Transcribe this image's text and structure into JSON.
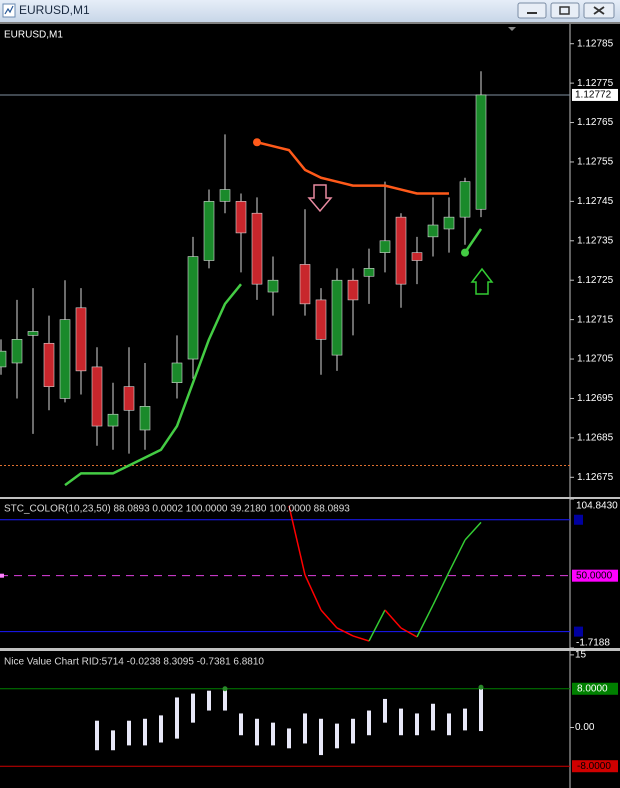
{
  "window": {
    "title": "EURUSD,M1"
  },
  "main": {
    "label": "EURUSD,M1",
    "ylim": [
      1.1267,
      1.1279
    ],
    "yticks": [
      1.12785,
      1.12775,
      1.12765,
      1.12755,
      1.12745,
      1.12735,
      1.12725,
      1.12715,
      1.12705,
      1.12695,
      1.12685,
      1.12675
    ],
    "current_price": 1.12772,
    "level": 1.12678,
    "up_color": "#1a8a2a",
    "down_color": "#c8262c",
    "wick_color": "#d8d8d8",
    "candles": [
      {
        "open": 1.12703,
        "high": 1.1271,
        "low": 1.12701,
        "close": 1.12707
      },
      {
        "open": 1.12704,
        "high": 1.1272,
        "low": 1.12695,
        "close": 1.1271
      },
      {
        "open": 1.12711,
        "high": 1.12723,
        "low": 1.12686,
        "close": 1.12712
      },
      {
        "open": 1.12709,
        "high": 1.12716,
        "low": 1.12692,
        "close": 1.12698
      },
      {
        "open": 1.12695,
        "high": 1.12725,
        "low": 1.12694,
        "close": 1.12715
      },
      {
        "open": 1.12718,
        "high": 1.12723,
        "low": 1.12696,
        "close": 1.12702
      },
      {
        "open": 1.12703,
        "high": 1.12708,
        "low": 1.12683,
        "close": 1.12688
      },
      {
        "open": 1.12688,
        "high": 1.12699,
        "low": 1.12682,
        "close": 1.12691
      },
      {
        "open": 1.12698,
        "high": 1.12708,
        "low": 1.12681,
        "close": 1.12692
      },
      {
        "open": 1.12687,
        "high": 1.12704,
        "low": 1.12682,
        "close": 1.12693
      },
      null,
      {
        "open": 1.12699,
        "high": 1.12711,
        "low": 1.12695,
        "close": 1.12704
      },
      {
        "open": 1.12705,
        "high": 1.12736,
        "low": 1.127,
        "close": 1.12731
      },
      {
        "open": 1.1273,
        "high": 1.12748,
        "low": 1.12728,
        "close": 1.12745
      },
      {
        "open": 1.12745,
        "high": 1.12762,
        "low": 1.12742,
        "close": 1.12748
      },
      {
        "open": 1.12745,
        "high": 1.12747,
        "low": 1.12727,
        "close": 1.12737
      },
      {
        "open": 1.12742,
        "high": 1.12746,
        "low": 1.1272,
        "close": 1.12724
      },
      {
        "open": 1.12722,
        "high": 1.12731,
        "low": 1.12716,
        "close": 1.12725
      },
      null,
      {
        "open": 1.12729,
        "high": 1.12743,
        "low": 1.12716,
        "close": 1.12719
      },
      {
        "open": 1.1272,
        "high": 1.12723,
        "low": 1.12701,
        "close": 1.1271
      },
      {
        "open": 1.12706,
        "high": 1.12728,
        "low": 1.12702,
        "close": 1.12725
      },
      {
        "open": 1.12725,
        "high": 1.12728,
        "low": 1.12711,
        "close": 1.1272
      },
      {
        "open": 1.12726,
        "high": 1.12733,
        "low": 1.12719,
        "close": 1.12728
      },
      {
        "open": 1.12732,
        "high": 1.1275,
        "low": 1.12727,
        "close": 1.12735
      },
      {
        "open": 1.12741,
        "high": 1.12742,
        "low": 1.12718,
        "close": 1.12724
      },
      {
        "open": 1.12732,
        "high": 1.12736,
        "low": 1.12724,
        "close": 1.1273
      },
      {
        "open": 1.12736,
        "high": 1.12746,
        "low": 1.12731,
        "close": 1.12739
      },
      {
        "open": 1.12738,
        "high": 1.12746,
        "low": 1.12732,
        "close": 1.12741
      },
      {
        "open": 1.12741,
        "high": 1.12751,
        "low": 1.12734,
        "close": 1.1275
      },
      {
        "open": 1.12743,
        "high": 1.12778,
        "low": 1.12741,
        "close": 1.12772
      }
    ],
    "upper_line": {
      "color": "#ff5a1a",
      "values": [
        null,
        null,
        null,
        null,
        null,
        null,
        null,
        null,
        null,
        null,
        null,
        null,
        null,
        null,
        null,
        null,
        1.1276,
        1.12759,
        1.12758,
        1.12753,
        1.12751,
        1.1275,
        1.12749,
        1.12749,
        1.12749,
        1.12748,
        1.12747,
        1.12747,
        1.12747,
        null,
        null
      ]
    },
    "lower_line": {
      "color": "#44cc44",
      "values": [
        null,
        null,
        null,
        null,
        1.12673,
        1.12676,
        1.12676,
        1.12676,
        1.12678,
        1.1268,
        1.12682,
        1.12688,
        1.12699,
        1.1271,
        1.12719,
        1.12724,
        null,
        null,
        null,
        null,
        null,
        null,
        null,
        null,
        null,
        null,
        null,
        null,
        null,
        1.12732,
        1.12738
      ]
    }
  },
  "stc": {
    "label": "STC_COLOR(10,23,50) 88.0893 0.0002 100.0000 39.2180 100.0000 88.0893",
    "ylim": [
      -1.7188,
      104.843
    ],
    "yticks": [
      {
        "value": 104.843,
        "label": "104.8430"
      },
      {
        "value": 50,
        "label": "50.0000"
      },
      -1.7188
    ],
    "levels": [
      90,
      10
    ],
    "up_color": "#33cc33",
    "down_color": "#ff0000",
    "values": [
      null,
      null,
      null,
      null,
      null,
      null,
      null,
      null,
      null,
      null,
      null,
      null,
      null,
      null,
      null,
      null,
      null,
      null,
      100,
      50.5,
      25.5,
      12.6,
      6.9,
      3.3,
      25.5,
      12.6,
      6.2,
      29.0,
      52.6,
      75.5,
      88.0893
    ]
  },
  "nvc": {
    "label": "Nice Value Chart RID:5714 -0.0238 8.3095 -0.7381 6.8810",
    "ylim": [
      -12.5,
      15.8
    ],
    "yticks": [
      15,
      {
        "value": 8,
        "label": "8.0000"
      },
      {
        "value": 0,
        "label": "0.00"
      },
      {
        "value": -8,
        "label": "-8.0000"
      }
    ],
    "levels": [
      8,
      -8
    ],
    "highs": [
      null,
      null,
      null,
      null,
      null,
      null,
      1.4,
      -0.6,
      1.4,
      1.8,
      2.5,
      6.2,
      7.0,
      7.6,
      8.0,
      2.9,
      1.8,
      1.0,
      -0.2,
      2.9,
      1.8,
      0.8,
      1.8,
      3.5,
      5.9,
      3.9,
      2.9,
      4.9,
      2.9,
      3.9,
      8.3095
    ],
    "lows": [
      null,
      null,
      null,
      null,
      null,
      null,
      -4.7,
      -4.7,
      -3.7,
      -3.7,
      -3.1,
      -2.3,
      1.0,
      3.5,
      3.5,
      -1.6,
      -3.7,
      -3.7,
      -4.3,
      -3.3,
      -5.7,
      -4.3,
      -3.3,
      -1.6,
      1.0,
      -1.6,
      -1.6,
      -0.6,
      -1.6,
      -0.6,
      -0.7381
    ]
  }
}
